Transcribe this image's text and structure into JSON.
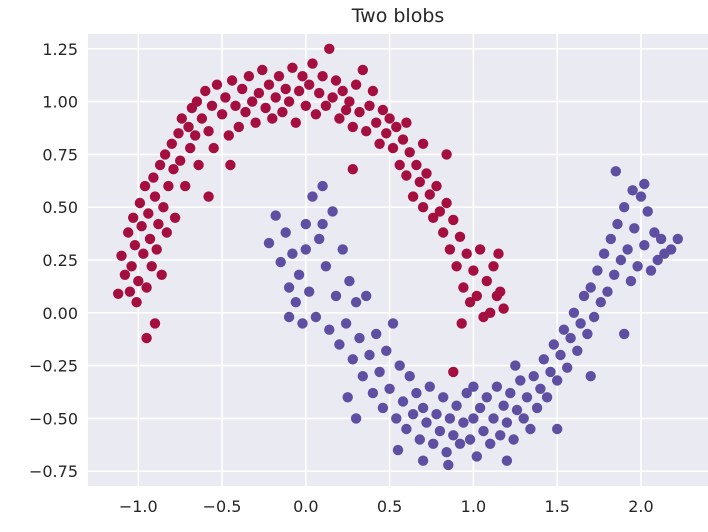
{
  "chart_data": {
    "type": "scatter",
    "title": "Two blobs",
    "xlabel": "",
    "ylabel": "",
    "xlim": [
      -1.3,
      2.4
    ],
    "ylim": [
      -0.82,
      1.32
    ],
    "grid": true,
    "background": "#eaeaf2",
    "grid_color": "#ffffff",
    "x_ticks": [
      -1.0,
      -0.5,
      0.0,
      0.5,
      1.0,
      1.5,
      2.0
    ],
    "x_tick_labels": [
      "−1.0",
      "−0.5",
      "0.0",
      "0.5",
      "1.0",
      "1.5",
      "2.0"
    ],
    "y_ticks": [
      1.25,
      1.0,
      0.75,
      0.5,
      0.25,
      0.0,
      -0.25,
      -0.5,
      -0.75
    ],
    "y_tick_labels": [
      "1.25",
      "1.00",
      "0.75",
      "0.50",
      "0.25",
      "0.00",
      "−0.25",
      "−0.50",
      "−0.75"
    ],
    "series": [
      {
        "color": "#a50f3f",
        "points": [
          [
            -1.12,
            0.09
          ],
          [
            -1.1,
            0.27
          ],
          [
            -1.08,
            0.18
          ],
          [
            -1.06,
            0.38
          ],
          [
            -1.05,
            0.1
          ],
          [
            -1.04,
            0.22
          ],
          [
            -1.03,
            0.45
          ],
          [
            -1.02,
            0.32
          ],
          [
            -1.01,
            0.05
          ],
          [
            -1.0,
            0.15
          ],
          [
            -0.99,
            0.52
          ],
          [
            -0.98,
            0.41
          ],
          [
            -0.97,
            0.28
          ],
          [
            -0.96,
            0.6
          ],
          [
            -0.95,
            0.12
          ],
          [
            -0.94,
            0.47
          ],
          [
            -0.93,
            0.35
          ],
          [
            -0.92,
            0.22
          ],
          [
            -0.91,
            0.64
          ],
          [
            -0.9,
            0.55
          ],
          [
            -0.89,
            0.3
          ],
          [
            -0.88,
            0.42
          ],
          [
            -0.87,
            0.7
          ],
          [
            -0.86,
            0.18
          ],
          [
            -0.85,
            0.5
          ],
          [
            -0.84,
            0.75
          ],
          [
            -0.83,
            0.38
          ],
          [
            -0.82,
            0.6
          ],
          [
            -0.8,
            0.8
          ],
          [
            -0.79,
            0.68
          ],
          [
            -0.78,
            0.45
          ],
          [
            -0.76,
            0.85
          ],
          [
            -0.75,
            0.72
          ],
          [
            -0.74,
            0.92
          ],
          [
            -0.72,
            0.6
          ],
          [
            -0.7,
            0.88
          ],
          [
            -0.69,
            0.78
          ],
          [
            -0.68,
            0.97
          ],
          [
            -0.66,
            0.84
          ],
          [
            -0.65,
            1.0
          ],
          [
            -0.64,
            0.7
          ],
          [
            -0.62,
            0.92
          ],
          [
            -0.6,
            1.05
          ],
          [
            -0.58,
            0.86
          ],
          [
            -0.56,
            0.98
          ],
          [
            -0.55,
            0.78
          ],
          [
            -0.53,
            1.08
          ],
          [
            -0.5,
            0.94
          ],
          [
            -0.48,
            1.02
          ],
          [
            -0.46,
            0.84
          ],
          [
            -0.44,
            1.1
          ],
          [
            -0.42,
            0.98
          ],
          [
            -0.4,
            0.88
          ],
          [
            -0.38,
            1.06
          ],
          [
            -0.36,
            0.95
          ],
          [
            -0.34,
            1.12
          ],
          [
            -0.32,
            1.0
          ],
          [
            -0.3,
            0.9
          ],
          [
            -0.28,
            1.04
          ],
          [
            -0.26,
            1.15
          ],
          [
            -0.24,
            0.97
          ],
          [
            -0.22,
            1.08
          ],
          [
            -0.2,
            0.92
          ],
          [
            -0.18,
            1.02
          ],
          [
            -0.16,
            1.12
          ],
          [
            -0.14,
            0.95
          ],
          [
            -0.12,
            1.06
          ],
          [
            -0.1,
            1.0
          ],
          [
            -0.08,
            1.16
          ],
          [
            -0.06,
            0.9
          ],
          [
            -0.04,
            1.05
          ],
          [
            -0.02,
            1.12
          ],
          [
            0.0,
            0.98
          ],
          [
            0.02,
            1.08
          ],
          [
            0.04,
            1.18
          ],
          [
            0.06,
            0.94
          ],
          [
            0.08,
            1.04
          ],
          [
            0.1,
            1.12
          ],
          [
            0.12,
            0.98
          ],
          [
            0.14,
            1.25
          ],
          [
            0.16,
            1.02
          ],
          [
            0.18,
            1.1
          ],
          [
            0.2,
            0.92
          ],
          [
            0.22,
            1.05
          ],
          [
            0.24,
            0.96
          ],
          [
            0.26,
            1.0
          ],
          [
            0.28,
            0.88
          ],
          [
            0.3,
            1.08
          ],
          [
            0.32,
            0.95
          ],
          [
            0.34,
            1.15
          ],
          [
            0.36,
            0.86
          ],
          [
            0.38,
            0.98
          ],
          [
            0.4,
            1.05
          ],
          [
            0.42,
            0.9
          ],
          [
            0.44,
            0.8
          ],
          [
            0.46,
            0.96
          ],
          [
            0.48,
            0.85
          ],
          [
            0.5,
            0.92
          ],
          [
            0.52,
            0.78
          ],
          [
            0.54,
            0.88
          ],
          [
            0.56,
            0.7
          ],
          [
            0.58,
            0.82
          ],
          [
            0.6,
            0.65
          ],
          [
            0.62,
            0.76
          ],
          [
            0.64,
            0.55
          ],
          [
            0.66,
            0.7
          ],
          [
            0.68,
            0.62
          ],
          [
            0.7,
            0.5
          ],
          [
            0.72,
            0.66
          ],
          [
            0.74,
            0.56
          ],
          [
            0.76,
            0.45
          ],
          [
            0.78,
            0.6
          ],
          [
            0.8,
            0.48
          ],
          [
            0.82,
            0.38
          ],
          [
            0.84,
            0.52
          ],
          [
            0.86,
            0.3
          ],
          [
            0.88,
            0.44
          ],
          [
            0.9,
            0.22
          ],
          [
            0.92,
            0.36
          ],
          [
            0.94,
            0.12
          ],
          [
            0.96,
            0.28
          ],
          [
            0.98,
            0.05
          ],
          [
            1.0,
            0.2
          ],
          [
            1.02,
            0.08
          ],
          [
            1.04,
            0.3
          ],
          [
            1.06,
            -0.02
          ],
          [
            1.08,
            0.15
          ],
          [
            1.1,
            0.0
          ],
          [
            1.12,
            0.22
          ],
          [
            1.14,
            0.08
          ],
          [
            1.16,
            0.1
          ],
          [
            1.18,
            0.02
          ],
          [
            -0.9,
            -0.05
          ],
          [
            -0.95,
            -0.12
          ],
          [
            0.28,
            0.68
          ],
          [
            0.84,
            0.75
          ],
          [
            0.6,
            0.9
          ],
          [
            0.93,
            -0.05
          ],
          [
            1.15,
            0.28
          ],
          [
            0.7,
            0.8
          ],
          [
            -0.58,
            0.55
          ],
          [
            -0.45,
            0.7
          ],
          [
            0.88,
            -0.28
          ]
        ]
      },
      {
        "color": "#5e4fa2",
        "points": [
          [
            -0.22,
            0.33
          ],
          [
            -0.18,
            0.46
          ],
          [
            -0.15,
            0.24
          ],
          [
            -0.12,
            0.38
          ],
          [
            -0.1,
            0.12
          ],
          [
            -0.08,
            0.28
          ],
          [
            -0.06,
            0.05
          ],
          [
            -0.04,
            0.18
          ],
          [
            -0.02,
            -0.05
          ],
          [
            0.0,
            0.42
          ],
          [
            0.02,
            0.1
          ],
          [
            0.04,
            0.55
          ],
          [
            0.06,
            -0.02
          ],
          [
            0.08,
            0.35
          ],
          [
            0.1,
            0.6
          ],
          [
            0.12,
            0.22
          ],
          [
            0.14,
            -0.08
          ],
          [
            0.16,
            0.48
          ],
          [
            0.18,
            0.08
          ],
          [
            0.2,
            -0.15
          ],
          [
            0.22,
            0.3
          ],
          [
            0.24,
            -0.05
          ],
          [
            0.26,
            0.15
          ],
          [
            0.28,
            -0.22
          ],
          [
            0.3,
            0.05
          ],
          [
            0.32,
            -0.12
          ],
          [
            0.34,
            -0.3
          ],
          [
            0.36,
            0.08
          ],
          [
            0.38,
            -0.2
          ],
          [
            0.4,
            -0.38
          ],
          [
            0.42,
            -0.1
          ],
          [
            0.44,
            -0.28
          ],
          [
            0.46,
            -0.45
          ],
          [
            0.48,
            -0.18
          ],
          [
            0.5,
            -0.36
          ],
          [
            0.52,
            -0.05
          ],
          [
            0.54,
            -0.5
          ],
          [
            0.56,
            -0.25
          ],
          [
            0.58,
            -0.42
          ],
          [
            0.6,
            -0.55
          ],
          [
            0.62,
            -0.3
          ],
          [
            0.64,
            -0.48
          ],
          [
            0.66,
            -0.38
          ],
          [
            0.68,
            -0.6
          ],
          [
            0.7,
            -0.45
          ],
          [
            0.72,
            -0.52
          ],
          [
            0.74,
            -0.35
          ],
          [
            0.76,
            -0.62
          ],
          [
            0.78,
            -0.48
          ],
          [
            0.8,
            -0.56
          ],
          [
            0.82,
            -0.4
          ],
          [
            0.84,
            -0.66
          ],
          [
            0.86,
            -0.5
          ],
          [
            0.88,
            -0.58
          ],
          [
            0.9,
            -0.44
          ],
          [
            0.92,
            -0.62
          ],
          [
            0.94,
            -0.52
          ],
          [
            0.96,
            -0.38
          ],
          [
            0.98,
            -0.6
          ],
          [
            1.0,
            -0.5
          ],
          [
            1.02,
            -0.68
          ],
          [
            1.04,
            -0.45
          ],
          [
            1.06,
            -0.56
          ],
          [
            1.08,
            -0.4
          ],
          [
            1.1,
            -0.62
          ],
          [
            1.12,
            -0.5
          ],
          [
            1.14,
            -0.35
          ],
          [
            1.16,
            -0.58
          ],
          [
            1.18,
            -0.44
          ],
          [
            1.2,
            -0.52
          ],
          [
            1.22,
            -0.38
          ],
          [
            1.24,
            -0.6
          ],
          [
            1.26,
            -0.46
          ],
          [
            1.28,
            -0.32
          ],
          [
            1.3,
            -0.5
          ],
          [
            1.32,
            -0.4
          ],
          [
            1.34,
            -0.55
          ],
          [
            1.36,
            -0.3
          ],
          [
            1.38,
            -0.45
          ],
          [
            1.4,
            -0.36
          ],
          [
            1.42,
            -0.22
          ],
          [
            1.44,
            -0.4
          ],
          [
            1.46,
            -0.28
          ],
          [
            1.48,
            -0.15
          ],
          [
            1.5,
            -0.32
          ],
          [
            1.52,
            -0.2
          ],
          [
            1.54,
            -0.08
          ],
          [
            1.56,
            -0.26
          ],
          [
            1.58,
            -0.12
          ],
          [
            1.6,
            0.0
          ],
          [
            1.62,
            -0.18
          ],
          [
            1.64,
            -0.05
          ],
          [
            1.66,
            0.08
          ],
          [
            1.68,
            -0.1
          ],
          [
            1.7,
            0.12
          ],
          [
            1.72,
            -0.02
          ],
          [
            1.74,
            0.2
          ],
          [
            1.76,
            0.05
          ],
          [
            1.78,
            0.28
          ],
          [
            1.8,
            0.1
          ],
          [
            1.82,
            0.35
          ],
          [
            1.84,
            0.18
          ],
          [
            1.86,
            0.42
          ],
          [
            1.88,
            0.25
          ],
          [
            1.9,
            0.5
          ],
          [
            1.92,
            0.3
          ],
          [
            1.94,
            0.15
          ],
          [
            1.96,
            0.4
          ],
          [
            1.98,
            0.22
          ],
          [
            2.0,
            0.55
          ],
          [
            2.02,
            0.32
          ],
          [
            2.04,
            0.48
          ],
          [
            2.06,
            0.2
          ],
          [
            2.08,
            0.38
          ],
          [
            2.1,
            0.25
          ],
          [
            2.12,
            0.35
          ],
          [
            2.14,
            0.28
          ],
          [
            2.18,
            0.3
          ],
          [
            2.22,
            0.35
          ],
          [
            1.85,
            0.67
          ],
          [
            2.02,
            0.61
          ],
          [
            1.95,
            0.58
          ],
          [
            0.1,
            0.42
          ],
          [
            0.25,
            -0.4
          ],
          [
            0.55,
            -0.65
          ],
          [
            0.85,
            -0.72
          ],
          [
            1.2,
            -0.7
          ],
          [
            1.5,
            -0.55
          ],
          [
            1.7,
            -0.3
          ],
          [
            1.9,
            -0.1
          ],
          [
            -0.1,
            -0.02
          ],
          [
            0.0,
            0.3
          ],
          [
            0.3,
            -0.5
          ],
          [
            0.7,
            -0.7
          ],
          [
            1.0,
            -0.35
          ],
          [
            1.25,
            -0.25
          ]
        ]
      }
    ]
  }
}
